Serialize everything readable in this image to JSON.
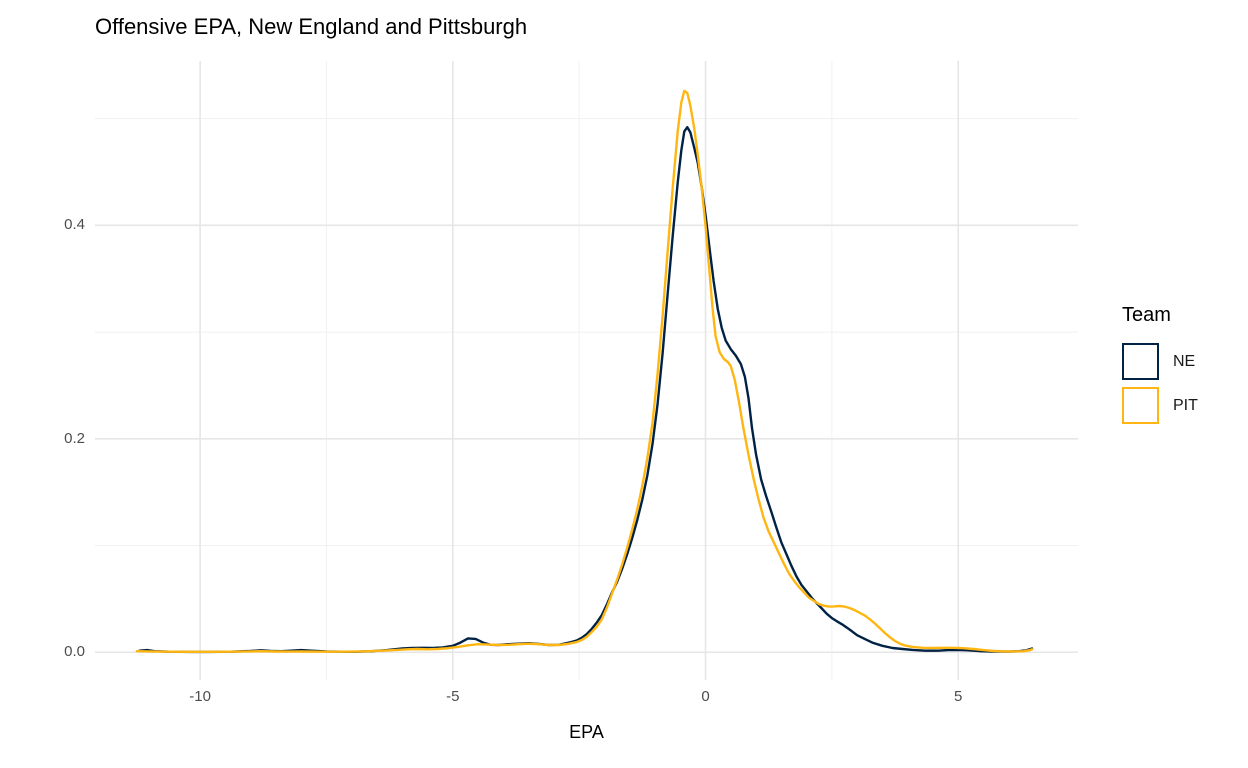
{
  "title": "Offensive EPA, New England and Pittsburgh",
  "legend": {
    "title": "Team",
    "items": [
      {
        "label": "NE",
        "color": "#002244"
      },
      {
        "label": "PIT",
        "color": "#FFB612"
      }
    ]
  },
  "colors": {
    "background": "#FFFFFF",
    "grid_major": "#E6E6E6",
    "grid_minor": "#F1F1F1",
    "axis_text": "#4D4D4D",
    "title_text": "#000000",
    "ne_line": "#002244",
    "pit_line": "#FFB612"
  },
  "chart_data": {
    "type": "line",
    "subtype": "density",
    "title": "Offensive EPA, New England and Pittsburgh",
    "xlabel": "EPA",
    "ylabel": "",
    "xlim": [
      -12.08,
      7.37
    ],
    "ylim": [
      -0.026,
      0.554
    ],
    "x_major_ticks": [
      -10,
      -5,
      0,
      5
    ],
    "x_minor_ticks": [
      -7.5,
      -2.5,
      2.5
    ],
    "x_tick_labels": [
      "-10",
      "-5",
      "0",
      "5"
    ],
    "y_major_ticks": [
      0.0,
      0.2,
      0.4
    ],
    "y_minor_ticks": [
      0.1,
      0.3,
      0.5
    ],
    "y_tick_labels": [
      "0.0",
      "0.2",
      "0.4"
    ],
    "grid": true,
    "legend_position": "right",
    "legend_title": "Team",
    "series": [
      {
        "name": "NE",
        "color": "#002244",
        "peak": {
          "x": -0.4,
          "y": 0.492
        },
        "points": [
          [
            -11.2,
            0.0015
          ],
          [
            -11.05,
            0.002
          ],
          [
            -10.9,
            0.001
          ],
          [
            -10.6,
            0.0005
          ],
          [
            -10.2,
            0.0003
          ],
          [
            -9.8,
            0.0003
          ],
          [
            -9.4,
            0.0005
          ],
          [
            -9.0,
            0.0012
          ],
          [
            -8.8,
            0.0018
          ],
          [
            -8.6,
            0.0012
          ],
          [
            -8.4,
            0.001
          ],
          [
            -8.2,
            0.0015
          ],
          [
            -8.0,
            0.002
          ],
          [
            -7.8,
            0.0015
          ],
          [
            -7.5,
            0.0008
          ],
          [
            -7.2,
            0.0005
          ],
          [
            -6.9,
            0.0005
          ],
          [
            -6.6,
            0.001
          ],
          [
            -6.3,
            0.002
          ],
          [
            -6.0,
            0.0035
          ],
          [
            -5.8,
            0.004
          ],
          [
            -5.6,
            0.0042
          ],
          [
            -5.4,
            0.004
          ],
          [
            -5.2,
            0.0045
          ],
          [
            -5.0,
            0.006
          ],
          [
            -4.85,
            0.009
          ],
          [
            -4.7,
            0.013
          ],
          [
            -4.55,
            0.0125
          ],
          [
            -4.4,
            0.009
          ],
          [
            -4.25,
            0.007
          ],
          [
            -4.1,
            0.0068
          ],
          [
            -3.9,
            0.0075
          ],
          [
            -3.7,
            0.008
          ],
          [
            -3.5,
            0.0085
          ],
          [
            -3.3,
            0.0078
          ],
          [
            -3.1,
            0.0068
          ],
          [
            -2.9,
            0.007
          ],
          [
            -2.7,
            0.009
          ],
          [
            -2.55,
            0.011
          ],
          [
            -2.45,
            0.0135
          ],
          [
            -2.35,
            0.017
          ],
          [
            -2.25,
            0.022
          ],
          [
            -2.15,
            0.028
          ],
          [
            -2.05,
            0.035
          ],
          [
            -1.95,
            0.045
          ],
          [
            -1.85,
            0.056
          ],
          [
            -1.75,
            0.066
          ],
          [
            -1.65,
            0.078
          ],
          [
            -1.55,
            0.092
          ],
          [
            -1.45,
            0.107
          ],
          [
            -1.35,
            0.124
          ],
          [
            -1.25,
            0.143
          ],
          [
            -1.15,
            0.166
          ],
          [
            -1.05,
            0.195
          ],
          [
            -0.95,
            0.232
          ],
          [
            -0.85,
            0.28
          ],
          [
            -0.75,
            0.335
          ],
          [
            -0.65,
            0.39
          ],
          [
            -0.55,
            0.44
          ],
          [
            -0.48,
            0.47
          ],
          [
            -0.42,
            0.488
          ],
          [
            -0.36,
            0.492
          ],
          [
            -0.3,
            0.487
          ],
          [
            -0.22,
            0.472
          ],
          [
            -0.15,
            0.458
          ],
          [
            -0.08,
            0.437
          ],
          [
            0.0,
            0.41
          ],
          [
            0.08,
            0.378
          ],
          [
            0.16,
            0.348
          ],
          [
            0.24,
            0.322
          ],
          [
            0.32,
            0.304
          ],
          [
            0.4,
            0.292
          ],
          [
            0.5,
            0.284
          ],
          [
            0.6,
            0.278
          ],
          [
            0.7,
            0.27
          ],
          [
            0.78,
            0.258
          ],
          [
            0.85,
            0.238
          ],
          [
            0.92,
            0.21
          ],
          [
            1.0,
            0.185
          ],
          [
            1.1,
            0.162
          ],
          [
            1.2,
            0.146
          ],
          [
            1.3,
            0.132
          ],
          [
            1.4,
            0.117
          ],
          [
            1.5,
            0.103
          ],
          [
            1.6,
            0.092
          ],
          [
            1.7,
            0.081
          ],
          [
            1.8,
            0.071
          ],
          [
            1.9,
            0.063
          ],
          [
            2.0,
            0.057
          ],
          [
            2.1,
            0.051
          ],
          [
            2.2,
            0.046
          ],
          [
            2.3,
            0.041
          ],
          [
            2.4,
            0.036
          ],
          [
            2.5,
            0.032
          ],
          [
            2.6,
            0.029
          ],
          [
            2.7,
            0.0262
          ],
          [
            2.8,
            0.023
          ],
          [
            2.9,
            0.0195
          ],
          [
            3.0,
            0.016
          ],
          [
            3.15,
            0.0125
          ],
          [
            3.3,
            0.009
          ],
          [
            3.5,
            0.006
          ],
          [
            3.7,
            0.004
          ],
          [
            3.9,
            0.003
          ],
          [
            4.1,
            0.0022
          ],
          [
            4.35,
            0.0015
          ],
          [
            4.6,
            0.0015
          ],
          [
            4.8,
            0.002
          ],
          [
            5.0,
            0.0022
          ],
          [
            5.2,
            0.0018
          ],
          [
            5.45,
            0.001
          ],
          [
            5.7,
            0.0007
          ],
          [
            6.0,
            0.0006
          ],
          [
            6.2,
            0.001
          ],
          [
            6.35,
            0.0018
          ],
          [
            6.46,
            0.0035
          ]
        ]
      },
      {
        "name": "PIT",
        "color": "#FFB612",
        "peak": {
          "x": -0.42,
          "y": 0.527
        },
        "points": [
          [
            -11.25,
            0.001
          ],
          [
            -11.0,
            0.0008
          ],
          [
            -10.6,
            0.0005
          ],
          [
            -10.2,
            0.0004
          ],
          [
            -9.8,
            0.0004
          ],
          [
            -9.4,
            0.0005
          ],
          [
            -9.0,
            0.0008
          ],
          [
            -8.8,
            0.001
          ],
          [
            -8.5,
            0.0007
          ],
          [
            -8.2,
            0.0006
          ],
          [
            -8.0,
            0.0007
          ],
          [
            -7.6,
            0.0005
          ],
          [
            -7.2,
            0.0005
          ],
          [
            -6.8,
            0.0008
          ],
          [
            -6.4,
            0.0015
          ],
          [
            -6.1,
            0.0022
          ],
          [
            -5.9,
            0.0028
          ],
          [
            -5.7,
            0.003
          ],
          [
            -5.5,
            0.0028
          ],
          [
            -5.3,
            0.003
          ],
          [
            -5.1,
            0.0038
          ],
          [
            -4.9,
            0.005
          ],
          [
            -4.7,
            0.0065
          ],
          [
            -4.5,
            0.0075
          ],
          [
            -4.3,
            0.0072
          ],
          [
            -4.1,
            0.0068
          ],
          [
            -3.9,
            0.007
          ],
          [
            -3.7,
            0.0075
          ],
          [
            -3.5,
            0.008
          ],
          [
            -3.3,
            0.0075
          ],
          [
            -3.1,
            0.0068
          ],
          [
            -2.9,
            0.0068
          ],
          [
            -2.7,
            0.008
          ],
          [
            -2.55,
            0.0095
          ],
          [
            -2.45,
            0.0115
          ],
          [
            -2.35,
            0.0145
          ],
          [
            -2.25,
            0.019
          ],
          [
            -2.15,
            0.024
          ],
          [
            -2.05,
            0.031
          ],
          [
            -1.95,
            0.042
          ],
          [
            -1.85,
            0.055
          ],
          [
            -1.75,
            0.068
          ],
          [
            -1.65,
            0.082
          ],
          [
            -1.55,
            0.098
          ],
          [
            -1.45,
            0.115
          ],
          [
            -1.35,
            0.134
          ],
          [
            -1.25,
            0.156
          ],
          [
            -1.15,
            0.182
          ],
          [
            -1.05,
            0.215
          ],
          [
            -0.95,
            0.26
          ],
          [
            -0.85,
            0.315
          ],
          [
            -0.75,
            0.375
          ],
          [
            -0.65,
            0.435
          ],
          [
            -0.55,
            0.488
          ],
          [
            -0.48,
            0.515
          ],
          [
            -0.42,
            0.526
          ],
          [
            -0.36,
            0.524
          ],
          [
            -0.3,
            0.512
          ],
          [
            -0.22,
            0.49
          ],
          [
            -0.15,
            0.465
          ],
          [
            -0.08,
            0.437
          ],
          [
            0.0,
            0.4
          ],
          [
            0.08,
            0.355
          ],
          [
            0.14,
            0.322
          ],
          [
            0.2,
            0.296
          ],
          [
            0.28,
            0.281
          ],
          [
            0.36,
            0.275
          ],
          [
            0.44,
            0.272
          ],
          [
            0.5,
            0.268
          ],
          [
            0.58,
            0.255
          ],
          [
            0.66,
            0.235
          ],
          [
            0.75,
            0.21
          ],
          [
            0.85,
            0.185
          ],
          [
            0.95,
            0.163
          ],
          [
            1.05,
            0.143
          ],
          [
            1.15,
            0.126
          ],
          [
            1.25,
            0.113
          ],
          [
            1.35,
            0.103
          ],
          [
            1.45,
            0.093
          ],
          [
            1.55,
            0.083
          ],
          [
            1.65,
            0.074
          ],
          [
            1.75,
            0.067
          ],
          [
            1.85,
            0.061
          ],
          [
            1.95,
            0.056
          ],
          [
            2.05,
            0.051
          ],
          [
            2.15,
            0.048
          ],
          [
            2.25,
            0.045
          ],
          [
            2.35,
            0.0435
          ],
          [
            2.45,
            0.0428
          ],
          [
            2.55,
            0.043
          ],
          [
            2.65,
            0.0433
          ],
          [
            2.75,
            0.0428
          ],
          [
            2.85,
            0.0415
          ],
          [
            2.95,
            0.0395
          ],
          [
            3.05,
            0.037
          ],
          [
            3.15,
            0.0345
          ],
          [
            3.25,
            0.031
          ],
          [
            3.35,
            0.027
          ],
          [
            3.45,
            0.0225
          ],
          [
            3.55,
            0.018
          ],
          [
            3.65,
            0.014
          ],
          [
            3.75,
            0.0105
          ],
          [
            3.85,
            0.008
          ],
          [
            3.95,
            0.0062
          ],
          [
            4.1,
            0.005
          ],
          [
            4.3,
            0.0042
          ],
          [
            4.5,
            0.004
          ],
          [
            4.7,
            0.0042
          ],
          [
            4.9,
            0.0042
          ],
          [
            5.1,
            0.0038
          ],
          [
            5.3,
            0.003
          ],
          [
            5.5,
            0.002
          ],
          [
            5.7,
            0.0012
          ],
          [
            5.9,
            0.0008
          ],
          [
            6.1,
            0.0007
          ],
          [
            6.3,
            0.001
          ],
          [
            6.42,
            0.002
          ],
          [
            6.46,
            0.0028
          ]
        ]
      }
    ]
  }
}
